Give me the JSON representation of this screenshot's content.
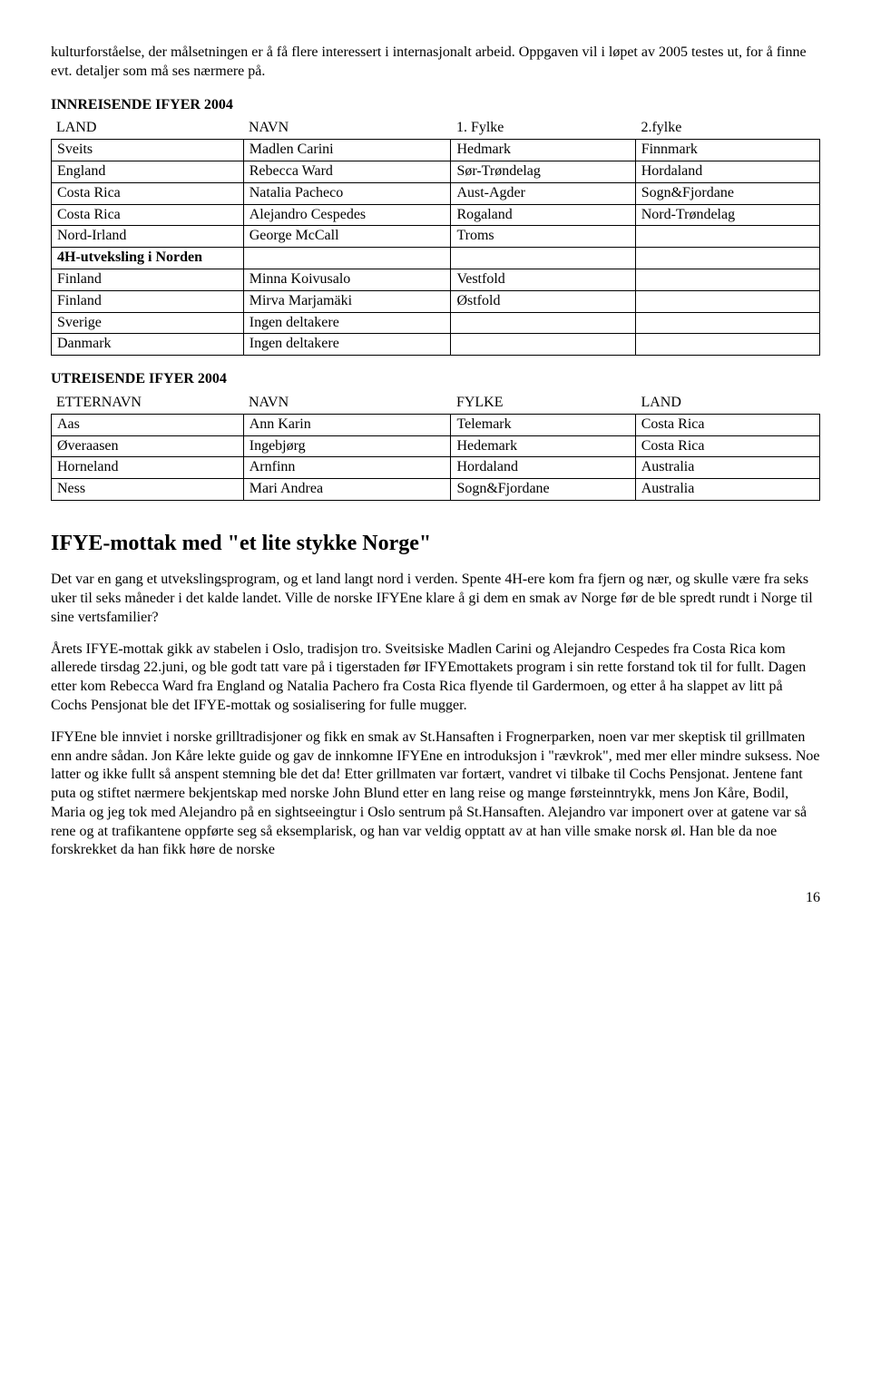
{
  "intro": "kulturforståelse, der målsetningen er å få flere interessert i internasjonalt arbeid. Oppgaven vil i løpet av 2005 testes ut, for å finne evt. detaljer som må ses nærmere på.",
  "inn": {
    "title": "INNREISENDE IFYER 2004",
    "headers": [
      "LAND",
      "NAVN",
      "1. Fylke",
      "2.fylke"
    ],
    "rows": [
      [
        "Sveits",
        "Madlen Carini",
        "Hedmark",
        "Finnmark"
      ],
      [
        "England",
        "Rebecca Ward",
        "Sør-Trøndelag",
        "Hordaland"
      ],
      [
        "Costa Rica",
        "Natalia Pacheco",
        "Aust-Agder",
        "Sogn&Fjordane"
      ],
      [
        "Costa Rica",
        "Alejandro Cespedes",
        "Rogaland",
        "Nord-Trøndelag"
      ],
      [
        "Nord-Irland",
        "George McCall",
        "Troms",
        ""
      ],
      [
        "4H-utveksling i Norden",
        "",
        "",
        ""
      ],
      [
        "Finland",
        "Minna Koivusalo",
        "Vestfold",
        ""
      ],
      [
        "Finland",
        "Mirva Marjamäki",
        "Østfold",
        ""
      ],
      [
        "Sverige",
        "Ingen deltakere",
        "",
        ""
      ],
      [
        "Danmark",
        "Ingen deltakere",
        "",
        ""
      ]
    ],
    "bold_rows": [
      5
    ]
  },
  "ut": {
    "title": "UTREISENDE IFYER 2004",
    "headers": [
      "ETTERNAVN",
      "NAVN",
      "FYLKE",
      "LAND"
    ],
    "rows": [
      [
        "Aas",
        "Ann Karin",
        "Telemark",
        "Costa Rica"
      ],
      [
        "Øveraasen",
        "Ingebjørg",
        "Hedemark",
        "Costa Rica"
      ],
      [
        "Horneland",
        "Arnfinn",
        "Hordaland",
        "Australia"
      ],
      [
        "Ness",
        "Mari Andrea",
        "Sogn&Fjordane",
        "Australia"
      ]
    ]
  },
  "article": {
    "heading": "IFYE-mottak med \"et lite stykke Norge\"",
    "paras": [
      "Det var en gang et utvekslingsprogram, og et land langt nord i verden. Spente 4H-ere kom fra fjern og nær, og skulle være fra seks uker til seks måneder i det kalde landet. Ville de norske IFYEne klare å gi dem en smak av Norge før de ble spredt rundt i Norge til sine vertsfamilier?",
      "Årets IFYE-mottak gikk av stabelen i Oslo, tradisjon tro. Sveitsiske Madlen Carini og Alejandro Cespedes fra Costa Rica kom allerede tirsdag 22.juni, og ble godt tatt vare på i tigerstaden før IFYEmottakets program i sin rette forstand tok til for fullt. Dagen etter kom Rebecca Ward fra England og Natalia Pachero fra Costa Rica flyende til Gardermoen, og etter å ha slappet av litt på Cochs Pensjonat ble det IFYE-mottak og sosialisering for fulle mugger.",
      "IFYEne ble innviet i norske grilltradisjoner og fikk en smak av St.Hansaften i Frognerparken, noen var mer skeptisk til grillmaten enn andre sådan. Jon Kåre lekte guide og gav de innkomne IFYEne en introduksjon i \"rævkrok\", med mer eller mindre suksess. Noe latter og ikke fullt så anspent stemning ble det da! Etter grillmaten var fortært, vandret vi tilbake til Cochs Pensjonat. Jentene fant puta og stiftet nærmere bekjentskap med norske John Blund etter en lang reise og mange førsteinntrykk, mens Jon Kåre, Bodil, Maria og jeg tok med Alejandro på en sightseeingtur i Oslo sentrum på St.Hansaften. Alejandro var imponert over at gatene var så rene og at trafikantene oppførte seg så eksemplarisk, og han var veldig opptatt av at han ville smake norsk øl. Han ble da noe forskrekket da han fikk høre de norske"
    ]
  },
  "page_number": "16",
  "col_widths": [
    "25%",
    "27%",
    "24%",
    "24%"
  ]
}
